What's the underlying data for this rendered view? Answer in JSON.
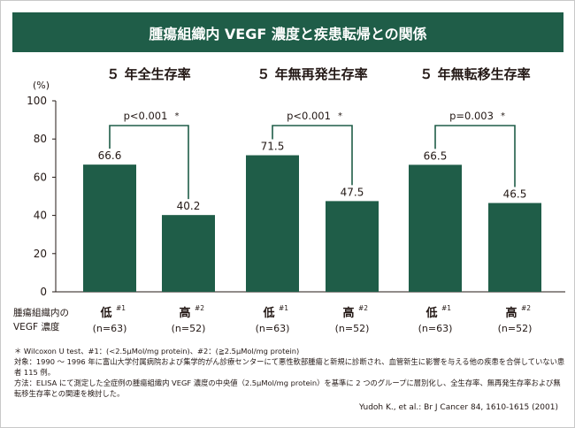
{
  "title": "腫瘍組織内 VEGF 濃度と疾患転帰との関係",
  "colors": {
    "accent": "#1f5d48",
    "bar": "#1f5d48",
    "bracket": "#1f5d48",
    "text": "#231815",
    "axis": "#231815"
  },
  "chart_data": {
    "type": "bar",
    "title": "腫瘍組織内 VEGF 濃度と疾患転帰との関係",
    "ylabel": "(%)",
    "xlabel": "",
    "ylim": [
      0,
      100
    ],
    "yticks": [
      0,
      20,
      40,
      60,
      80,
      100
    ],
    "row_label": [
      "腫瘍組織内の",
      "VEGF 濃度"
    ],
    "groups": [
      {
        "name": "５ 年全生存率",
        "bars": [
          {
            "label": "低",
            "sup": "#1",
            "n": "(n=63)",
            "value": 66.6,
            "value_label": "66.6"
          },
          {
            "label": "高",
            "sup": "#2",
            "n": "(n=52)",
            "value": 40.2,
            "value_label": "40.2"
          }
        ],
        "p_label": "p<0.001",
        "p_mark": "*"
      },
      {
        "name": "５ 年無再発生存率",
        "bars": [
          {
            "label": "低",
            "sup": "#1",
            "n": "(n=63)",
            "value": 71.5,
            "value_label": "71.5"
          },
          {
            "label": "高",
            "sup": "#2",
            "n": "(n=52)",
            "value": 47.5,
            "value_label": "47.5"
          }
        ],
        "p_label": "p<0.001",
        "p_mark": "*"
      },
      {
        "name": "５ 年無転移生存率",
        "bars": [
          {
            "label": "低",
            "sup": "#1",
            "n": "(n=63)",
            "value": 66.5,
            "value_label": "66.5"
          },
          {
            "label": "高",
            "sup": "#2",
            "n": "(n=52)",
            "value": 46.5,
            "value_label": "46.5"
          }
        ],
        "p_label": "p=0.003",
        "p_mark": "*"
      }
    ]
  },
  "footnotes": {
    "line1": "＊ Wilcoxon U test、#1：(<2.5μMol/mg protein)、#2：(≧2.5μMol/mg protein)",
    "line2": "対象：1990 ～ 1996 年に富山大学付属病院および集学的がん診療センターにて悪性軟部腫瘍と新規に診断され、血管新生に影響を与える他の疾患を合併していない患者 115 例。",
    "line3": "方法：ELISA にて測定した全症例の腫瘍組織内 VEGF 濃度の中央値（2.5μMol/mg protein）を基準に 2 つのグループに層別化し、全生存率、無再発生存率および無転移生存率との関連を検討した。"
  },
  "citation": "Yudoh K., et al.: Br J Cancer 84, 1610-1615 (2001)"
}
